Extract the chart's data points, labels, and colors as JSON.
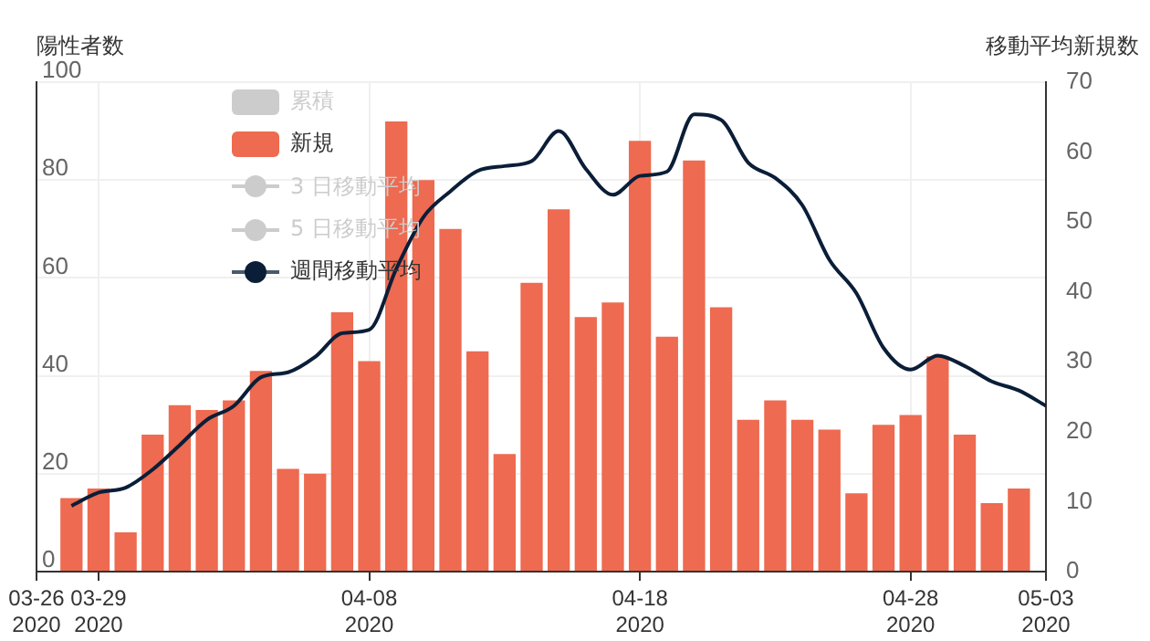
{
  "chart_data": {
    "type": "bar",
    "ylabel": "陽性者数",
    "y2label": "移動平均新規数",
    "x": [
      "2020-03-28",
      "2020-03-29",
      "2020-03-30",
      "2020-03-31",
      "2020-04-01",
      "2020-04-02",
      "2020-04-03",
      "2020-04-04",
      "2020-04-05",
      "2020-04-06",
      "2020-04-07",
      "2020-04-08",
      "2020-04-09",
      "2020-04-10",
      "2020-04-11",
      "2020-04-12",
      "2020-04-13",
      "2020-04-14",
      "2020-04-15",
      "2020-04-16",
      "2020-04-17",
      "2020-04-18",
      "2020-04-19",
      "2020-04-20",
      "2020-04-21",
      "2020-04-22",
      "2020-04-23",
      "2020-04-24",
      "2020-04-25",
      "2020-04-26",
      "2020-04-27",
      "2020-04-28",
      "2020-04-29",
      "2020-04-30",
      "2020-05-01",
      "2020-05-02"
    ],
    "series": [
      {
        "name": "累積",
        "color": "#cccccc",
        "values": [
          null,
          null,
          null,
          null,
          null,
          null,
          null,
          null,
          null,
          null,
          null,
          null,
          null,
          null,
          null,
          null,
          null,
          null,
          null,
          null,
          null,
          null,
          null,
          null,
          null,
          null,
          null,
          null,
          null,
          null,
          null,
          null,
          null,
          null,
          null,
          null
        ]
      },
      {
        "name": "新規",
        "color": "#ee6a50",
        "values": [
          15,
          17,
          8,
          28,
          34,
          33,
          35,
          41,
          21,
          20,
          53,
          43,
          92,
          80,
          70,
          45,
          24,
          59,
          74,
          52,
          55,
          88,
          48,
          84,
          54,
          31,
          35,
          31,
          29,
          16,
          30,
          32,
          44,
          28,
          14,
          17
        ]
      },
      {
        "name": "3 日移動平均",
        "type": "line",
        "axis": "y2",
        "color": "#cccccc",
        "values": [
          null,
          null,
          null,
          null,
          null,
          null,
          null,
          null,
          null,
          null,
          null,
          null,
          null,
          null,
          null,
          null,
          null,
          null,
          null,
          null,
          null,
          null,
          null,
          null,
          null,
          null,
          null,
          null,
          null,
          null,
          null,
          null,
          null,
          null,
          null,
          null
        ]
      },
      {
        "name": "5 日移動平均",
        "type": "line",
        "axis": "y2",
        "color": "#cccccc",
        "values": [
          null,
          null,
          null,
          null,
          null,
          null,
          null,
          null,
          null,
          null,
          null,
          null,
          null,
          null,
          null,
          null,
          null,
          null,
          null,
          null,
          null,
          null,
          null,
          null,
          null,
          null,
          null,
          null,
          null,
          null,
          null,
          null,
          null,
          null,
          null,
          null
        ]
      },
      {
        "name": "週間移動平均",
        "type": "line",
        "axis": "y2",
        "color": "#0b1e38",
        "x": [
          "2020-03-28",
          "2020-03-29",
          "2020-03-30",
          "2020-03-31",
          "2020-04-01",
          "2020-04-02",
          "2020-04-03",
          "2020-04-04",
          "2020-04-05",
          "2020-04-06",
          "2020-04-07",
          "2020-04-08",
          "2020-04-09",
          "2020-04-10",
          "2020-04-11",
          "2020-04-12",
          "2020-04-13",
          "2020-04-14",
          "2020-04-15",
          "2020-04-16",
          "2020-04-17",
          "2020-04-18",
          "2020-04-19",
          "2020-04-20",
          "2020-04-21",
          "2020-04-22",
          "2020-04-23",
          "2020-04-24",
          "2020-04-25",
          "2020-04-26",
          "2020-04-27",
          "2020-04-28",
          "2020-04-29",
          "2020-04-30",
          "2020-05-01",
          "2020-05-02",
          "2020-05-03"
        ],
        "values": [
          9.4,
          11.3,
          12,
          14.6,
          18.1,
          21.7,
          23.7,
          27.8,
          28.5,
          30.7,
          34.1,
          34.6,
          43.3,
          50.7,
          54.4,
          57.3,
          58,
          58.7,
          63,
          57.6,
          53.9,
          56.6,
          57.2,
          65.4,
          64.6,
          58.5,
          56.3,
          52.4,
          44.6,
          39.8,
          32,
          28.9,
          30.9,
          29.4,
          27.2,
          25.9,
          23.7
        ]
      }
    ],
    "xlim": [
      "2020-03-26T17:00",
      "2020-05-03"
    ],
    "xticks": [
      {
        "value": "2020-03-26T17:00",
        "label": "03-26\n2020"
      },
      {
        "value": "2020-03-29",
        "label": "03-29\n2020"
      },
      {
        "value": "2020-04-08",
        "label": "04-08\n2020"
      },
      {
        "value": "2020-04-18",
        "label": "04-18\n2020"
      },
      {
        "value": "2020-04-28",
        "label": "04-28\n2020"
      },
      {
        "value": "2020-05-03",
        "label": "05-03\n2020"
      }
    ],
    "ylim": [
      0,
      100
    ],
    "yticks": [
      0,
      20,
      40,
      60,
      80,
      100
    ],
    "y2lim": [
      0,
      70
    ],
    "y2ticks": [
      0,
      10,
      20,
      30,
      40,
      50,
      60,
      70
    ],
    "grid": true,
    "legend": "top left",
    "marker": "none"
  }
}
